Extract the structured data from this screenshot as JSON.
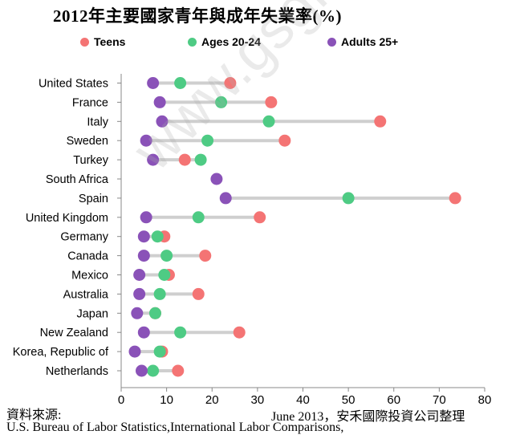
{
  "title": "2012年主要國家青年與成年失業率(%)",
  "watermark": "www.gsgroup.tw",
  "footer": {
    "source_label": "資料來源:",
    "date_note": "June 2013，安禾國際投資公司整理",
    "source_text": "U.S. Bureau of Labor Statistics,International Labor Comparisons,"
  },
  "chart_data": {
    "type": "dot-plot",
    "xlim": [
      0,
      80
    ],
    "xticks": [
      0,
      10,
      20,
      30,
      40,
      50,
      60,
      70,
      80
    ],
    "grid": false,
    "legend_position": "top",
    "categories": [
      "United States",
      "France",
      "Italy",
      "Sweden",
      "Turkey",
      "South Africa",
      "Spain",
      "United Kingdom",
      "Germany",
      "Canada",
      "Mexico",
      "Australia",
      "Japan",
      "New Zealand",
      "Korea, Republic of",
      "Netherlands"
    ],
    "series": [
      {
        "name": "Teens",
        "color": "#f47474",
        "values": [
          24,
          33,
          57,
          36,
          14,
          null,
          73.5,
          30.5,
          9.5,
          18.5,
          10.5,
          17,
          7.5,
          26,
          9,
          12.5
        ]
      },
      {
        "name": "Ages 20-24",
        "color": "#4ecb84",
        "values": [
          13,
          22,
          32.5,
          19,
          17.5,
          null,
          50,
          17,
          8,
          10,
          9.5,
          8.5,
          7.5,
          13,
          8.5,
          7
        ]
      },
      {
        "name": "Adults 25+",
        "color": "#8a52b8",
        "values": [
          7,
          8.5,
          9,
          5.5,
          7,
          21,
          23,
          5.5,
          5,
          5,
          4,
          4,
          3.5,
          5,
          3,
          4.5
        ]
      }
    ]
  }
}
